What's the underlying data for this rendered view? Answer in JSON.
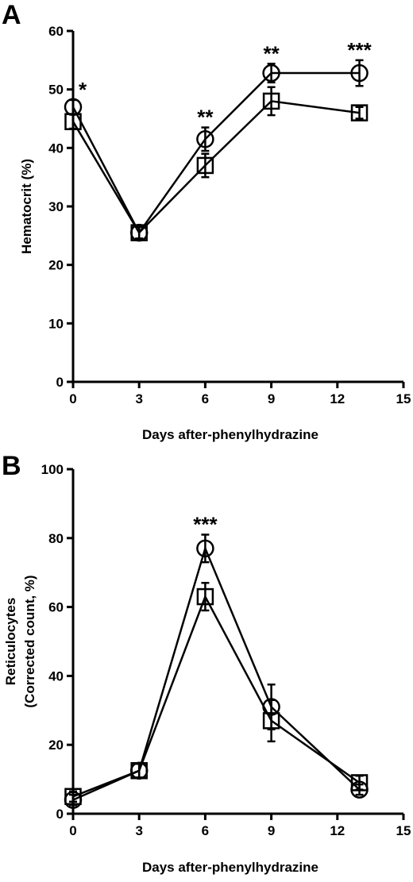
{
  "chart_data": [
    {
      "panel": "A",
      "type": "line",
      "xlabel": "Days after-phenylhydrazine",
      "ylabel": "Hematocrit (%)",
      "xlim": [
        0,
        15
      ],
      "ylim": [
        0,
        60
      ],
      "xticks": [
        0,
        3,
        6,
        9,
        12,
        15
      ],
      "yticks": [
        0,
        10,
        20,
        30,
        40,
        50,
        60
      ],
      "grid": false,
      "series": [
        {
          "marker": "circle",
          "x": [
            0,
            3,
            6,
            9,
            13
          ],
          "y": [
            47,
            25.5,
            41.5,
            52.8,
            52.8
          ],
          "err": [
            1.2,
            1.0,
            2.0,
            1.6,
            2.2
          ]
        },
        {
          "marker": "square",
          "x": [
            0,
            3,
            6,
            9,
            13
          ],
          "y": [
            44.5,
            25.5,
            37,
            48,
            46
          ],
          "err": [
            1.2,
            1.0,
            2.0,
            2.4,
            1.0
          ]
        }
      ],
      "annotations": [
        {
          "x": 0,
          "y": 47,
          "text": "*"
        },
        {
          "x": 6,
          "y": 41.5,
          "text": "**"
        },
        {
          "x": 9,
          "y": 52.8,
          "text": "**"
        },
        {
          "x": 13,
          "y": 52.8,
          "text": "***"
        }
      ]
    },
    {
      "panel": "B",
      "type": "line",
      "xlabel": "Days after-phenylhydrazine",
      "ylabel_line1": "Reticulocytes",
      "ylabel_line2": "(Corrected count, %)",
      "xlim": [
        0,
        15
      ],
      "ylim": [
        0,
        100
      ],
      "xticks": [
        0,
        3,
        6,
        9,
        12,
        15
      ],
      "yticks": [
        0,
        20,
        40,
        60,
        80,
        100
      ],
      "grid": false,
      "series": [
        {
          "marker": "circle",
          "x": [
            0,
            3,
            6,
            9,
            13
          ],
          "y": [
            4,
            12.5,
            77,
            31,
            7
          ],
          "err": [
            1.5,
            2.0,
            4.0,
            6.5,
            1.5
          ]
        },
        {
          "marker": "square",
          "x": [
            0,
            3,
            6,
            9,
            13
          ],
          "y": [
            5,
            12.5,
            63,
            27,
            9
          ],
          "err": [
            1.5,
            2.0,
            4.0,
            6.0,
            2.0
          ]
        }
      ],
      "annotations": [
        {
          "x": 6,
          "y": 77,
          "text": "***"
        }
      ]
    }
  ]
}
